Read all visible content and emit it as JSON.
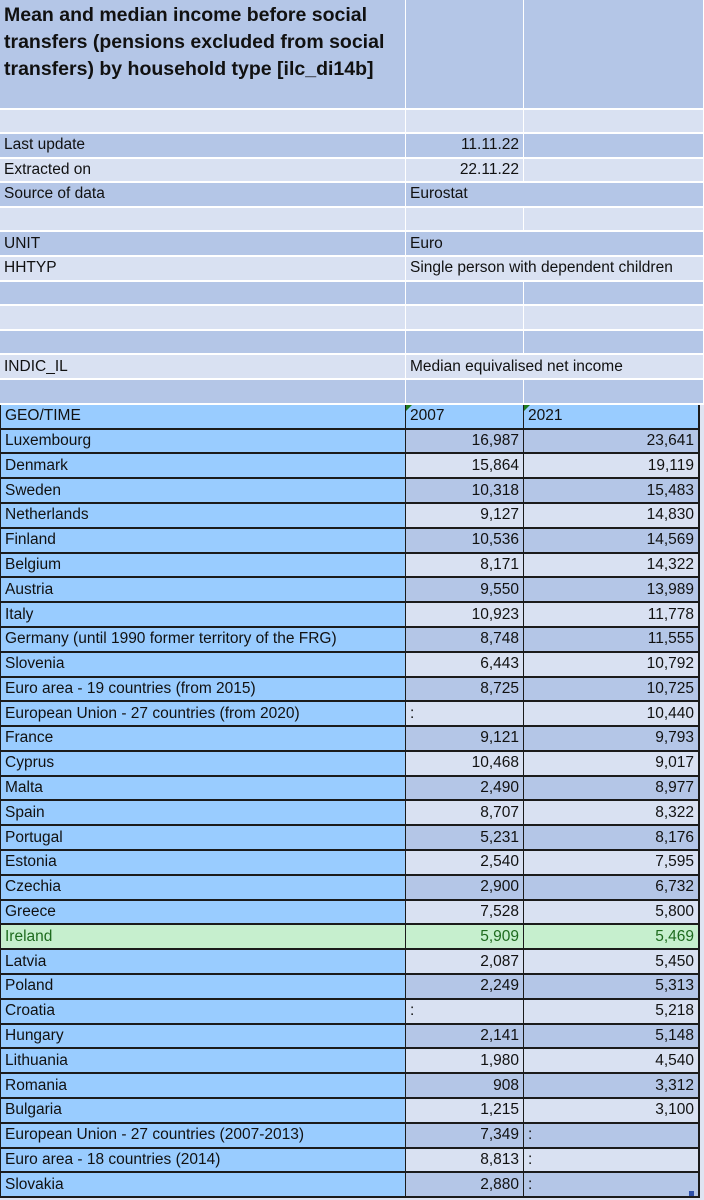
{
  "header": {
    "title": "Mean and median income before social transfers (pensions excluded from social transfers) by household type [ilc_di14b]",
    "meta": [
      {
        "label": "Last update",
        "value": "11.11.22",
        "align": "right"
      },
      {
        "label": "Extracted on",
        "value": "22.11.22",
        "align": "right"
      },
      {
        "label": "Source of data",
        "value": "Eurostat",
        "align": "left"
      },
      {
        "label": "",
        "value": ""
      },
      {
        "label": "UNIT",
        "value": "Euro",
        "align": "left"
      },
      {
        "label": "HHTYP",
        "value": "Single person with dependent children",
        "align": "left"
      },
      {
        "label": "",
        "value": ""
      },
      {
        "label": "",
        "value": ""
      },
      {
        "label": "",
        "value": ""
      },
      {
        "label": "INDIC_IL",
        "value": "Median equivalised net income",
        "align": "left"
      },
      {
        "label": "",
        "value": ""
      }
    ]
  },
  "table": {
    "columns": [
      "GEO/TIME",
      "2007",
      "2021"
    ],
    "rows": [
      {
        "geo": "Luxembourg",
        "y2007": "16,987",
        "y2021": "23,641"
      },
      {
        "geo": "Denmark",
        "y2007": "15,864",
        "y2021": "19,119"
      },
      {
        "geo": "Sweden",
        "y2007": "10,318",
        "y2021": "15,483"
      },
      {
        "geo": "Netherlands",
        "y2007": "9,127",
        "y2021": "14,830"
      },
      {
        "geo": "Finland",
        "y2007": "10,536",
        "y2021": "14,569"
      },
      {
        "geo": "Belgium",
        "y2007": "8,171",
        "y2021": "14,322"
      },
      {
        "geo": "Austria",
        "y2007": "9,550",
        "y2021": "13,989"
      },
      {
        "geo": "Italy",
        "y2007": "10,923",
        "y2021": "11,778"
      },
      {
        "geo": "Germany (until 1990 former territory of the FRG)",
        "y2007": "8,748",
        "y2021": "11,555"
      },
      {
        "geo": "Slovenia",
        "y2007": "6,443",
        "y2021": "10,792"
      },
      {
        "geo": "Euro area - 19 countries  (from 2015)",
        "y2007": "8,725",
        "y2021": "10,725"
      },
      {
        "geo": "European Union - 27 countries (from 2020)",
        "y2007": ":",
        "y2021": "10,440"
      },
      {
        "geo": "France",
        "y2007": "9,121",
        "y2021": "9,793"
      },
      {
        "geo": "Cyprus",
        "y2007": "10,468",
        "y2021": "9,017"
      },
      {
        "geo": "Malta",
        "y2007": "2,490",
        "y2021": "8,977"
      },
      {
        "geo": "Spain",
        "y2007": "8,707",
        "y2021": "8,322"
      },
      {
        "geo": "Portugal",
        "y2007": "5,231",
        "y2021": "8,176"
      },
      {
        "geo": "Estonia",
        "y2007": "2,540",
        "y2021": "7,595"
      },
      {
        "geo": "Czechia",
        "y2007": "2,900",
        "y2021": "6,732"
      },
      {
        "geo": "Greece",
        "y2007": "7,528",
        "y2021": "5,800"
      },
      {
        "geo": "Ireland",
        "y2007": "5,909",
        "y2021": "5,469",
        "highlight": true
      },
      {
        "geo": "Latvia",
        "y2007": "2,087",
        "y2021": "5,450"
      },
      {
        "geo": "Poland",
        "y2007": "2,249",
        "y2021": "5,313"
      },
      {
        "geo": "Croatia",
        "y2007": ":",
        "y2021": "5,218"
      },
      {
        "geo": "Hungary",
        "y2007": "2,141",
        "y2021": "5,148"
      },
      {
        "geo": "Lithuania",
        "y2007": "1,980",
        "y2021": "4,540"
      },
      {
        "geo": "Romania",
        "y2007": "908",
        "y2021": "3,312"
      },
      {
        "geo": "Bulgaria",
        "y2007": "1,215",
        "y2021": "3,100"
      },
      {
        "geo": "European Union - 27 countries (2007-2013)",
        "y2007": "7,349",
        "y2021": ":"
      },
      {
        "geo": "Euro area - 18 countries (2014)",
        "y2007": "8,813",
        "y2021": ":"
      },
      {
        "geo": "Slovakia",
        "y2007": "2,880",
        "y2021": ":"
      }
    ]
  },
  "colors": {
    "header_dark": "#b4c6e7",
    "header_light": "#d9e1f2",
    "geo_column": "#99ccff",
    "highlight_fill": "#c6efce",
    "highlight_text": "#1e6b1e"
  }
}
